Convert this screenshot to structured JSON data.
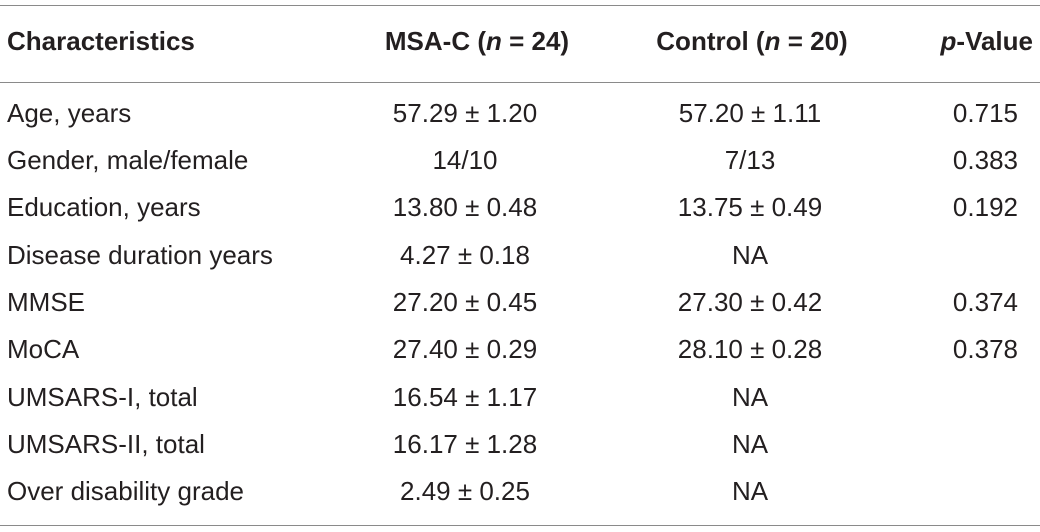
{
  "table": {
    "headers": {
      "characteristics": "Characteristics",
      "msa_prefix": "MSA-C (",
      "msa_n": "n",
      "msa_suffix": " = 24)",
      "control_prefix": "Control (",
      "control_n": "n",
      "control_suffix": " = 20)",
      "pvalue_p": "p",
      "pvalue_suffix": "-Value"
    },
    "rows": [
      {
        "label": "Age, years",
        "msa": "57.29 ± 1.20",
        "control": "57.20 ± 1.11",
        "p": "0.715"
      },
      {
        "label": "Gender, male/female",
        "msa": "14/10",
        "control": "7/13",
        "p": "0.383"
      },
      {
        "label": "Education, years",
        "msa": "13.80 ± 0.48",
        "control": "13.75 ± 0.49",
        "p": "0.192"
      },
      {
        "label": "Disease duration years",
        "msa": "4.27 ± 0.18",
        "control": "NA",
        "p": ""
      },
      {
        "label": "MMSE",
        "msa": "27.20 ± 0.45",
        "control": "27.30 ± 0.42",
        "p": "0.374"
      },
      {
        "label": "MoCA",
        "msa": "27.40 ± 0.29",
        "control": "28.10 ± 0.28",
        "p": "0.378"
      },
      {
        "label": "UMSARS-I, total",
        "msa": "16.54 ± 1.17",
        "control": "NA",
        "p": ""
      },
      {
        "label": "UMSARS-II, total",
        "msa": "16.17 ± 1.28",
        "control": "NA",
        "p": ""
      },
      {
        "label": "Over disability grade",
        "msa": "2.49 ± 0.25",
        "control": "NA",
        "p": ""
      }
    ]
  }
}
